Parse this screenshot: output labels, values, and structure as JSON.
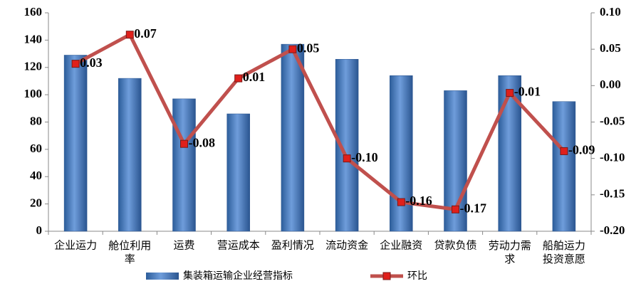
{
  "chart_data": {
    "type": "bar-line",
    "categories": [
      "企业运力",
      "舱位利用率",
      "运费",
      "营运成本",
      "盈利情况",
      "流动资金",
      "企业融资",
      "贷款负债",
      "劳动力需求",
      "船舶运力投资意愿"
    ],
    "series": [
      {
        "name": "集装箱运输企业经营指标",
        "type": "bar",
        "color": "#4f81bd",
        "values": [
          129,
          112,
          97,
          86,
          137,
          126,
          114,
          103,
          114,
          95
        ]
      },
      {
        "name": "环比",
        "type": "line",
        "axis": "y2",
        "color": "#c0504d",
        "values": [
          0.03,
          0.07,
          -0.08,
          0.01,
          0.05,
          -0.1,
          -0.16,
          -0.17,
          -0.01,
          -0.09
        ],
        "value_labels": [
          "0.03",
          "0.07",
          "-0.08",
          "0.01",
          "0.05",
          "-0.10",
          "-0.16",
          "-0.17",
          "-0.01",
          "-0.09"
        ]
      }
    ],
    "ylim": [
      0,
      160
    ],
    "yticks": [
      0,
      20,
      40,
      60,
      80,
      100,
      120,
      140,
      160
    ],
    "y2lim": [
      -0.2,
      0.1
    ],
    "y2ticks": [
      {
        "value": -0.2,
        "label": "-0.20"
      },
      {
        "value": -0.15,
        "label": "-0.15"
      },
      {
        "value": -0.1,
        "label": "-0.10"
      },
      {
        "value": -0.05,
        "label": "-0.05"
      },
      {
        "value": 0,
        "label": "0.00"
      },
      {
        "value": 0.05,
        "label": "0.05"
      },
      {
        "value": 0.1,
        "label": "0.10"
      }
    ],
    "legend": "bottom"
  }
}
